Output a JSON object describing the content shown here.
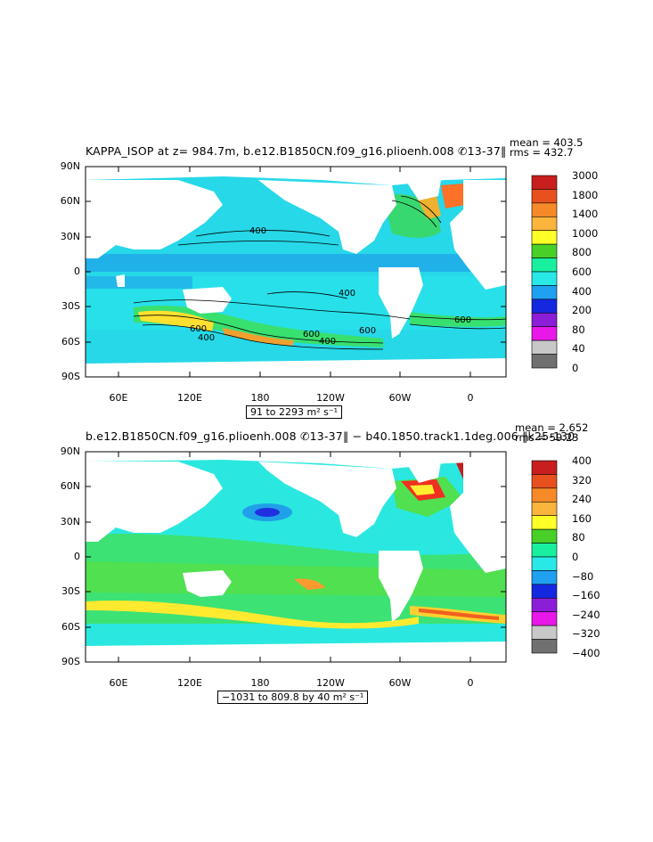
{
  "panels": [
    {
      "title": "KAPPA_ISOP at z= 984.7m, b.e12.B1850CN.f09_g16.plioenh.008 ✆13-37‖",
      "stats_mean": "mean = 403.5",
      "stats_rms": "rms = 432.7",
      "range_text": "91 to 2293 m² s⁻¹",
      "y_ticks": [
        "90N",
        "60N",
        "30N",
        "0",
        "30S",
        "60S",
        "90S"
      ],
      "x_ticks": [
        "60E",
        "120E",
        "180",
        "120W",
        "60W",
        "0"
      ],
      "colorbar_labels": [
        "3000",
        "1800",
        "1400",
        "1000",
        "800",
        "600",
        "400",
        "200",
        "80",
        "40",
        "0"
      ],
      "colorbar_colors": [
        "#c81e1e",
        "#e8501e",
        "#f78a28",
        "#fbb43c",
        "#ffff28",
        "#48d028",
        "#18f0a0",
        "#28e8e8",
        "#20a0f0",
        "#1428e0",
        "#8c1ed8",
        "#e818e8",
        "#c8c8c8",
        "#707070"
      ],
      "contour_labels": [
        "400",
        "400",
        "600",
        "600",
        "400",
        "600",
        "600",
        "400"
      ]
    },
    {
      "title": "b.e12.B1850CN.f09_g16.plioenh.008 ✆13-37‖ − b40.1850.track1.1deg.006 ‖k25-130",
      "stats_mean": "mean = 2.652",
      "stats_rms": "rms = 59.23",
      "range_text": "−1031 to 809.8 by 40 m² s⁻¹",
      "y_ticks": [
        "90N",
        "60N",
        "30N",
        "0",
        "30S",
        "60S",
        "90S"
      ],
      "x_ticks": [
        "60E",
        "120E",
        "180",
        "120W",
        "60W",
        "0"
      ],
      "colorbar_labels": [
        "400",
        "320",
        "240",
        "160",
        "80",
        "0",
        "−80",
        "−160",
        "−240",
        "−320",
        "−400"
      ],
      "colorbar_colors": [
        "#c81e1e",
        "#e8501e",
        "#f78a28",
        "#fbb43c",
        "#ffff28",
        "#48d028",
        "#18f0a0",
        "#28e8e8",
        "#20a0f0",
        "#1428e0",
        "#8c1ed8",
        "#e818e8",
        "#c8c8c8",
        "#707070"
      ]
    }
  ]
}
